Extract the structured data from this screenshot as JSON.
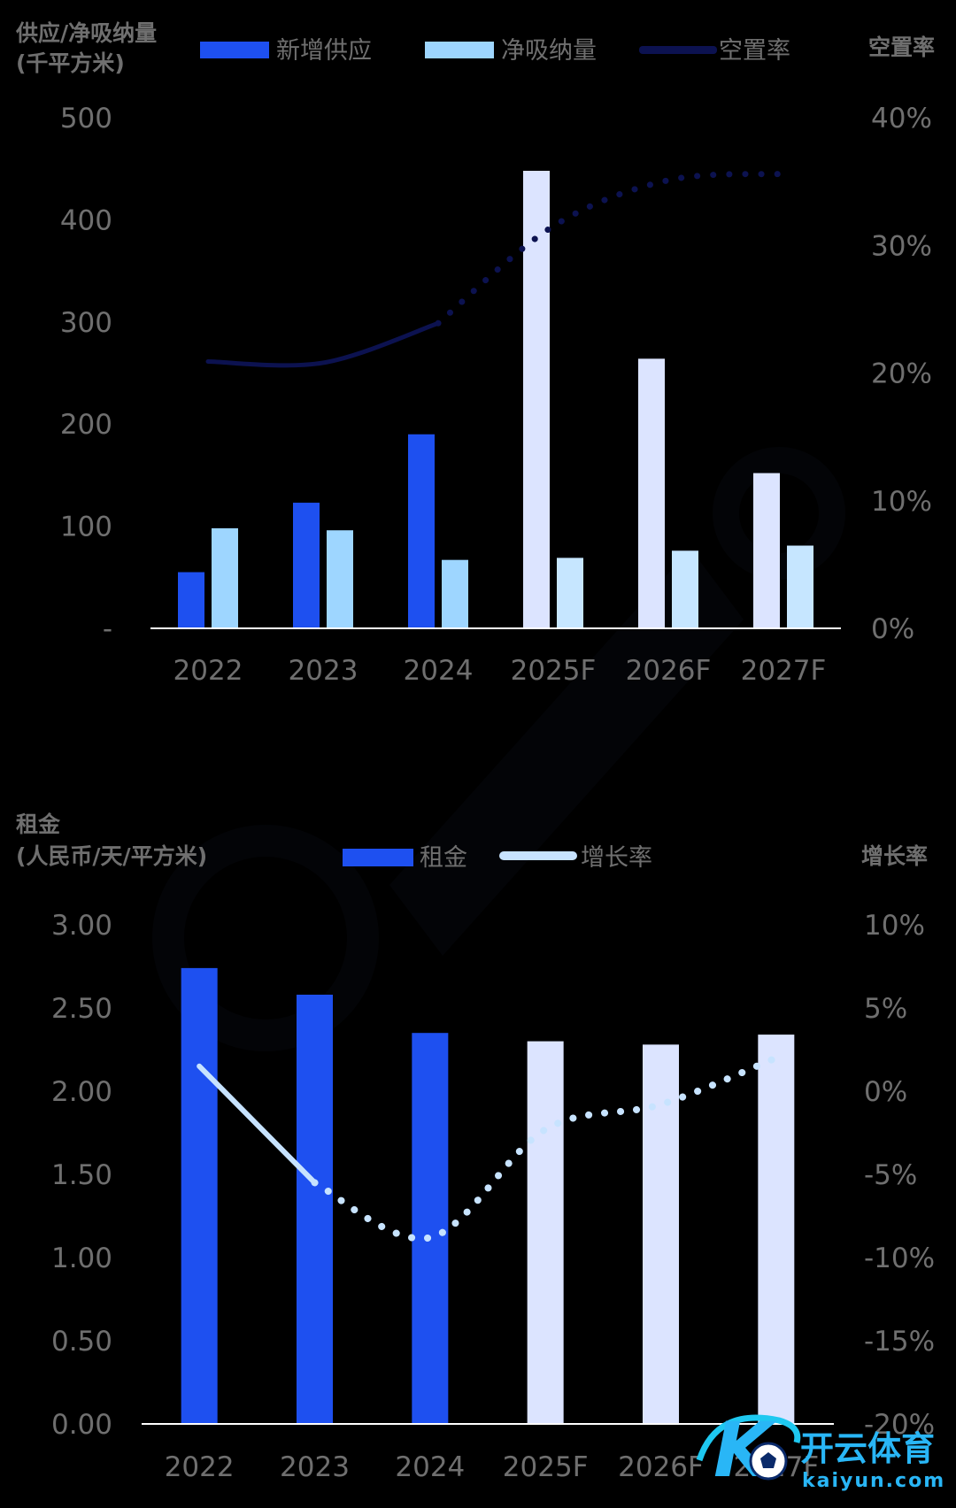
{
  "chart_data": [
    {
      "type": "bar",
      "y_title_left": [
        "供应/净吸纳量",
        "(千平方米)"
      ],
      "y_title_right": "空置率",
      "legend": [
        {
          "label": "新增供应",
          "kind": "bar",
          "color": "#1e50f0"
        },
        {
          "label": "净吸纳量",
          "kind": "bar",
          "color": "#9ed6ff"
        },
        {
          "label": "空置率",
          "kind": "line",
          "color": "#0c1250"
        }
      ],
      "categories": [
        "2022",
        "2023",
        "2024",
        "2025F",
        "2026F",
        "2027F"
      ],
      "forecast_from_index": 3,
      "series": [
        {
          "name": "新增供应",
          "values": [
            55,
            123,
            190,
            448,
            264,
            152
          ],
          "color": "#1e50f0",
          "forecast_color": "#dce4ff"
        },
        {
          "name": "净吸纳量",
          "values": [
            98,
            96,
            67,
            69,
            76,
            81
          ],
          "color": "#9ed6ff",
          "forecast_color": "#c6e6ff"
        }
      ],
      "line_series": {
        "name": "空置率",
        "values": [
          20.9,
          20.8,
          23.9,
          31.5,
          35.1,
          35.6
        ],
        "color": "#0c1250",
        "forecast_from_index": 3
      },
      "y_left_ticks": [
        "-",
        "100",
        "200",
        "300",
        "400",
        "500"
      ],
      "y_left_range": [
        0,
        500
      ],
      "y_right_ticks": [
        "0%",
        "10%",
        "20%",
        "30%",
        "40%"
      ],
      "y_right_range": [
        0,
        40
      ]
    },
    {
      "type": "bar",
      "y_title_left": [
        "租金",
        "(人民币/天/平方米)"
      ],
      "y_title_right": "增长率",
      "legend": [
        {
          "label": "租金",
          "kind": "bar",
          "color": "#1e50f0"
        },
        {
          "label": "增长率",
          "kind": "line",
          "color": "#c7e3ff"
        }
      ],
      "categories": [
        "2022",
        "2023",
        "2024",
        "2025F",
        "2026F",
        "2027F"
      ],
      "forecast_from_index": 3,
      "series": [
        {
          "name": "租金",
          "values": [
            2.74,
            2.58,
            2.35,
            2.3,
            2.28,
            2.34
          ],
          "color": "#1e50f0",
          "forecast_color": "#dce4ff"
        }
      ],
      "line_series": {
        "name": "增长率",
        "values": [
          1.5,
          -5.5,
          -8.8,
          -2.3,
          -0.8,
          2.0
        ],
        "color": "#c7e3ff",
        "forecast_from_index": 2
      },
      "y_left_ticks": [
        "0.00",
        "0.50",
        "1.00",
        "1.50",
        "2.00",
        "2.50",
        "3.00"
      ],
      "y_left_range": [
        0,
        3
      ],
      "y_right_ticks": [
        "-20%",
        "-15%",
        "-10%",
        "-5%",
        "0%",
        "5%",
        "10%"
      ],
      "y_right_range": [
        -20,
        10
      ]
    }
  ],
  "watermark": {
    "brand_cn": "开云体育",
    "brand_en": "kaiyun.com",
    "logo_letter": "K"
  }
}
